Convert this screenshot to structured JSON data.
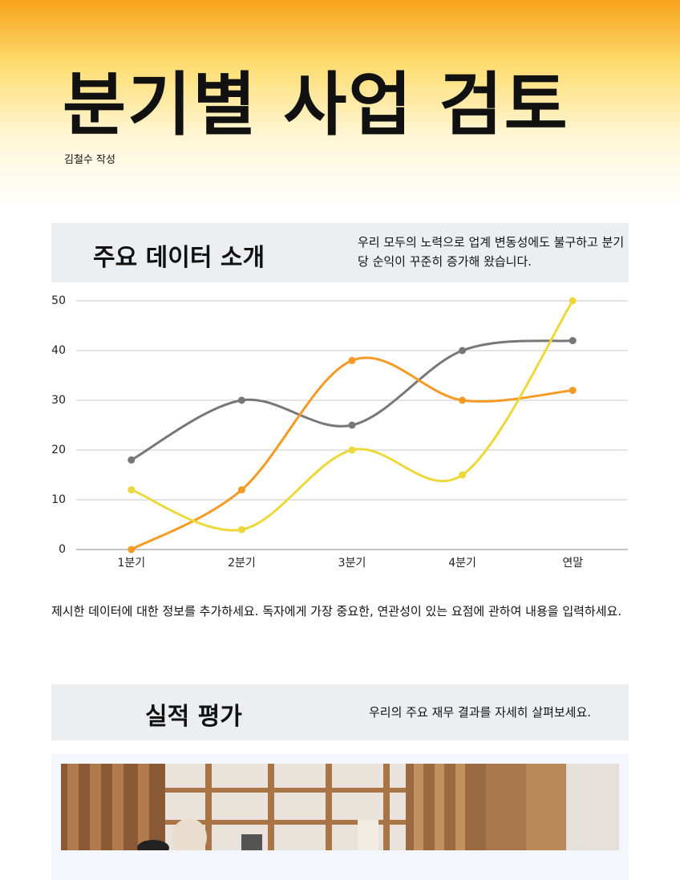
{
  "header": {
    "title": "분기별 사업 검토",
    "author": "김철수 작성"
  },
  "section1": {
    "title": "주요 데이터 소개",
    "description": "우리 모두의 노력으로 업계 변동성에도 불구하고 분기당 순익이 꾸준히 증가해 왔습니다."
  },
  "chart_data": {
    "type": "line",
    "categories": [
      "1분기",
      "2분기",
      "3분기",
      "4분기",
      "연말"
    ],
    "series": [
      {
        "color": "#777777",
        "values": [
          18,
          30,
          25,
          40,
          42
        ]
      },
      {
        "color": "#f59a23",
        "values": [
          0,
          12,
          38,
          30,
          32
        ]
      },
      {
        "color": "#ecd83a",
        "values": [
          12,
          4,
          20,
          15,
          50
        ]
      }
    ],
    "ylim": [
      0,
      50
    ],
    "yticks": [
      0,
      10,
      20,
      30,
      40,
      50
    ],
    "grid": true,
    "smooth": true
  },
  "paragraph": "제시한 데이터에 대한 정보를 추가하세요. 독자에게 가장 중요한, 연관성이 있는 요점에 관하여 내용을 입력하세요.",
  "section2": {
    "title": "실적 평가",
    "description": "우리의 주요 재무 결과를 자세히 살펴보세요."
  }
}
